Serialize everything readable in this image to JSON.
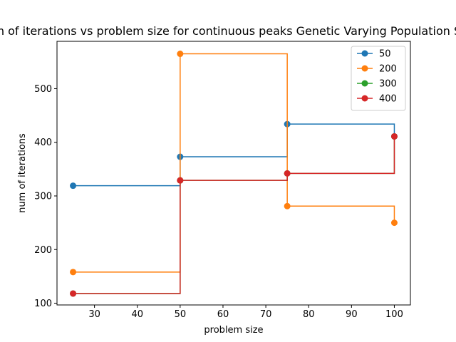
{
  "chart_data": {
    "type": "line",
    "drawstyle": "steps-post",
    "title": "num of iterations vs problem size for continuous peaks Genetic Varying Population Size",
    "xlabel": "problem size",
    "ylabel": "num of iterations",
    "xlim": [
      21.25,
      103.75
    ],
    "ylim": [
      96.7,
      588.3
    ],
    "xticks": [
      30,
      40,
      50,
      60,
      70,
      80,
      90,
      100
    ],
    "yticks": [
      100,
      200,
      300,
      400,
      500
    ],
    "grid": false,
    "legend_position": "top-right",
    "x": [
      25,
      50,
      75,
      100
    ],
    "series": [
      {
        "name": "50",
        "color": "#1f77b4",
        "values": [
          319,
          373,
          434,
          411
        ]
      },
      {
        "name": "200",
        "color": "#ff7f0e",
        "values": [
          158,
          565,
          281,
          250
        ]
      },
      {
        "name": "300",
        "color": "#2ca02c",
        "values": [
          118,
          329,
          342,
          411
        ]
      },
      {
        "name": "400",
        "color": "#d62728",
        "values": [
          118,
          329,
          342,
          411
        ]
      }
    ]
  }
}
